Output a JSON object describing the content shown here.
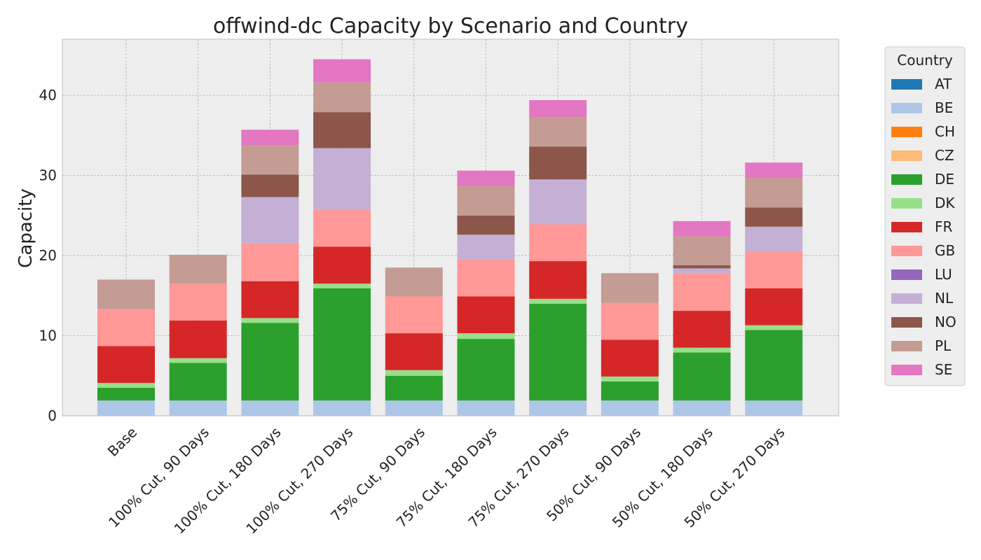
{
  "chart_data": {
    "type": "bar",
    "stacked": true,
    "title": "offwind-dc Capacity by Scenario and Country",
    "xlabel": "",
    "ylabel": "Capacity",
    "ylim": [
      0,
      47
    ],
    "yticks": [
      0,
      10,
      20,
      30,
      40
    ],
    "grid": true,
    "legend_title": "Country",
    "legend_position": "outside-right",
    "categories": [
      "Base",
      "100% Cut, 90 Days",
      "100% Cut, 180 Days",
      "100% Cut, 270 Days",
      "75% Cut, 90 Days",
      "75% Cut, 180 Days",
      "75% Cut, 270 Days",
      "50% Cut, 90 Days",
      "50% Cut, 180 Days",
      "50% Cut, 270 Days"
    ],
    "series": [
      {
        "name": "AT",
        "color": "#1f77b4",
        "values": [
          0,
          0,
          0,
          0,
          0,
          0,
          0,
          0,
          0,
          0
        ]
      },
      {
        "name": "BE",
        "color": "#aec7e8",
        "values": [
          1.9,
          1.9,
          1.9,
          1.9,
          1.9,
          1.9,
          1.9,
          1.9,
          1.9,
          1.9
        ]
      },
      {
        "name": "CH",
        "color": "#ff7f0e",
        "values": [
          0,
          0,
          0,
          0,
          0,
          0,
          0,
          0,
          0,
          0
        ]
      },
      {
        "name": "CZ",
        "color": "#ffbb78",
        "values": [
          0,
          0,
          0,
          0,
          0,
          0,
          0,
          0,
          0,
          0
        ]
      },
      {
        "name": "DE",
        "color": "#2ca02c",
        "values": [
          1.6,
          4.7,
          9.7,
          14.0,
          3.1,
          7.7,
          12.1,
          2.4,
          6.0,
          8.8
        ]
      },
      {
        "name": "DK",
        "color": "#98df8a",
        "values": [
          0.6,
          0.6,
          0.6,
          0.6,
          0.7,
          0.7,
          0.6,
          0.6,
          0.6,
          0.6
        ]
      },
      {
        "name": "FR",
        "color": "#d62728",
        "values": [
          4.6,
          4.7,
          4.6,
          4.6,
          4.6,
          4.6,
          4.7,
          4.6,
          4.6,
          4.6
        ]
      },
      {
        "name": "GB",
        "color": "#ff9896",
        "values": [
          4.6,
          4.6,
          4.7,
          4.6,
          4.6,
          4.6,
          4.6,
          4.6,
          4.7,
          4.6
        ]
      },
      {
        "name": "LU",
        "color": "#9467bd",
        "values": [
          0,
          0,
          0,
          0,
          0,
          0,
          0,
          0,
          0,
          0
        ]
      },
      {
        "name": "NL",
        "color": "#c5b0d5",
        "values": [
          0,
          0,
          5.8,
          7.7,
          0,
          3.1,
          5.6,
          0,
          0.6,
          3.1
        ]
      },
      {
        "name": "NO",
        "color": "#8c564b",
        "values": [
          0,
          0,
          2.8,
          4.5,
          0,
          2.4,
          4.1,
          0,
          0.4,
          2.4
        ]
      },
      {
        "name": "PL",
        "color": "#c49c94",
        "values": [
          3.7,
          3.6,
          3.7,
          3.7,
          3.6,
          3.7,
          3.7,
          3.7,
          3.6,
          3.7
        ]
      },
      {
        "name": "SE",
        "color": "#e377c2",
        "values": [
          0,
          0,
          1.9,
          2.9,
          0,
          1.9,
          2.1,
          0,
          1.9,
          1.9
        ]
      }
    ]
  }
}
